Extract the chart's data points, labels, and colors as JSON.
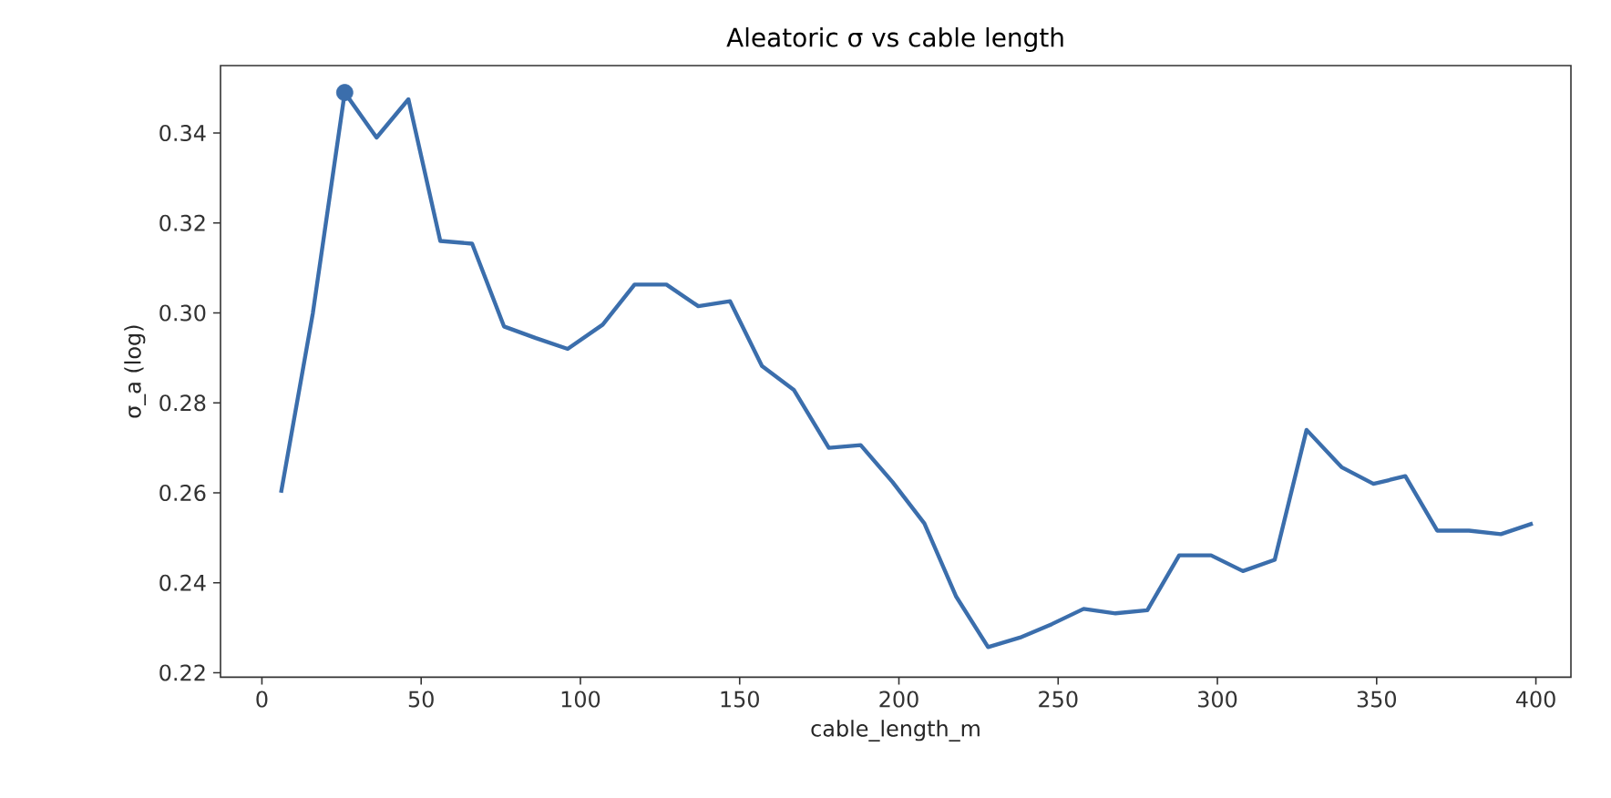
{
  "chart_data": {
    "type": "line",
    "title": "Aleatoric σ vs cable length",
    "xlabel": "cable_length_m",
    "ylabel": "σ_a (log)",
    "xlim": [
      -13,
      411
    ],
    "ylim": [
      0.219,
      0.355
    ],
    "xticks": [
      0,
      50,
      100,
      150,
      200,
      250,
      300,
      350,
      400
    ],
    "yticks": [
      0.22,
      0.24,
      0.26,
      0.28,
      {
        "value": 0.3,
        "label": "0.30"
      },
      0.32,
      0.34
    ],
    "grid": false,
    "series": [
      {
        "color": "#3b6eac",
        "line_style": "solid",
        "x": [
          6,
          16,
          26,
          36,
          46,
          56,
          66,
          76,
          86,
          96,
          107,
          117,
          127,
          137,
          147,
          157,
          167,
          178,
          188,
          198,
          208,
          218,
          228,
          238,
          248,
          258,
          268,
          278,
          288,
          298,
          308,
          318,
          328,
          339,
          349,
          359,
          369,
          379,
          389,
          399
        ],
        "values": [
          0.26,
          0.3,
          0.349,
          0.339,
          0.3475,
          0.316,
          0.3154,
          0.297,
          0.2944,
          0.292,
          0.2974,
          0.3063,
          0.3063,
          0.3015,
          0.3026,
          0.2882,
          0.2829,
          0.27,
          0.2706,
          0.2624,
          0.2532,
          0.2369,
          0.2257,
          0.2278,
          0.2308,
          0.2342,
          0.2332,
          0.2339,
          0.2461,
          0.2461,
          0.2426,
          0.2451,
          0.274,
          0.2657,
          0.262,
          0.2637,
          0.2516,
          0.2516,
          0.2508,
          0.2532
        ]
      },
      {
        "type": "scatter",
        "color": "#3b6eac",
        "x": [
          26
        ],
        "values": [
          0.349
        ]
      }
    ]
  }
}
